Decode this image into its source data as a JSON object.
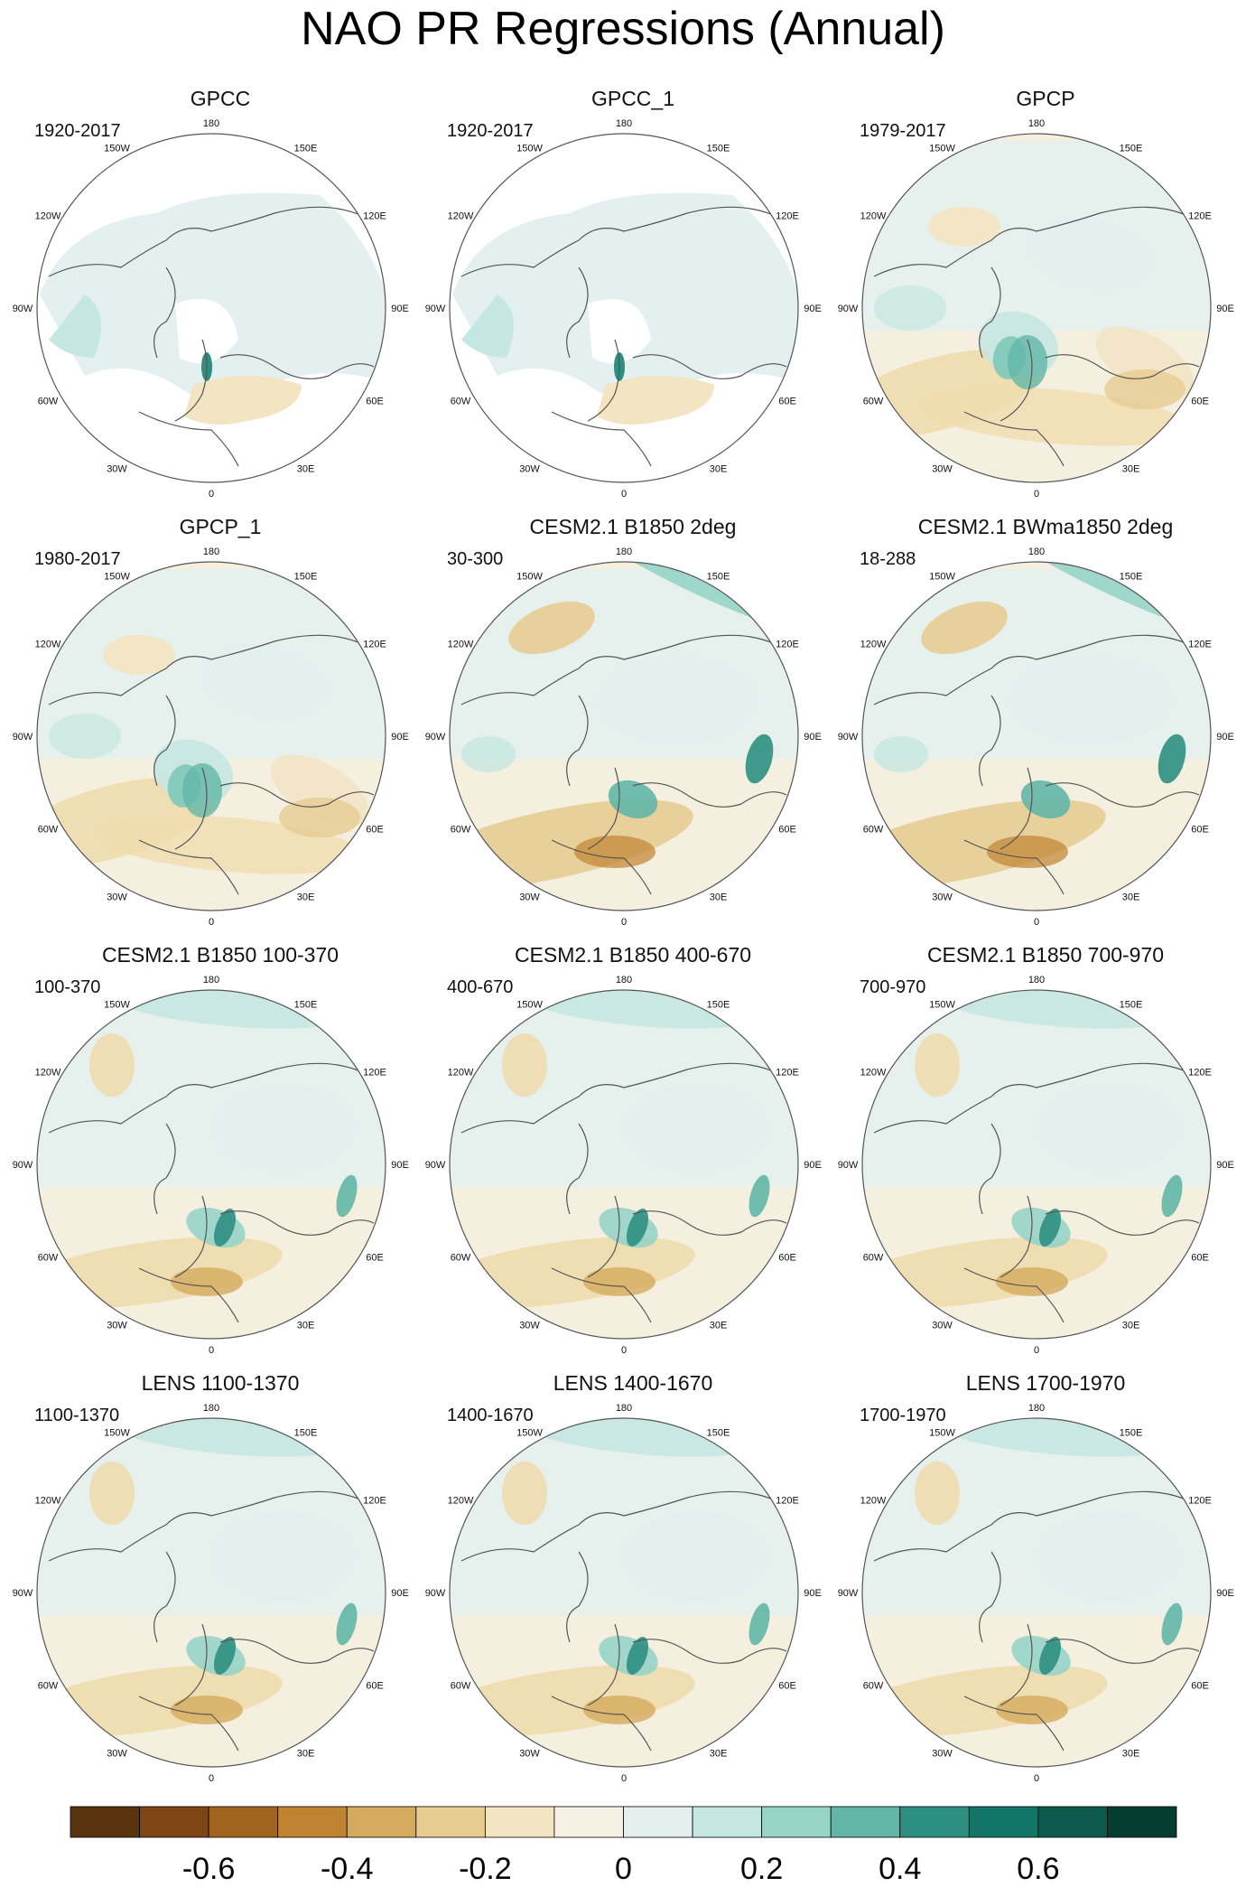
{
  "title": "NAO PR Regressions (Annual)",
  "panels": [
    {
      "title": "GPCC",
      "period": "1920-2017",
      "style": "gpcc"
    },
    {
      "title": "GPCC_1",
      "period": "1920-2017",
      "style": "gpcc"
    },
    {
      "title": "GPCP",
      "period": "1979-2017",
      "style": "obs"
    },
    {
      "title": "GPCP_1",
      "period": "1980-2017",
      "style": "obs"
    },
    {
      "title": "CESM2.1 B1850 2deg",
      "period": "30-300",
      "style": "model_strong"
    },
    {
      "title": "CESM2.1 BWma1850 2deg",
      "period": "18-288",
      "style": "model_strong"
    },
    {
      "title": "CESM2.1 B1850 100-370",
      "period": "100-370",
      "style": "model"
    },
    {
      "title": "CESM2.1 B1850 400-670",
      "period": "400-670",
      "style": "model"
    },
    {
      "title": "CESM2.1 B1850 700-970",
      "period": "700-970",
      "style": "model_weak"
    },
    {
      "title": "LENS 1100-1370",
      "period": "1100-1370",
      "style": "model"
    },
    {
      "title": "LENS 1400-1670",
      "period": "1400-1670",
      "style": "model"
    },
    {
      "title": "LENS 1700-1970",
      "period": "1700-1970",
      "style": "model"
    }
  ],
  "lon_labels": {
    "top": "180",
    "bottom": "0",
    "left": [
      "150W",
      "120W",
      "90W",
      "60W",
      "30W"
    ],
    "right": [
      "150E",
      "120E",
      "90E",
      "60E",
      "30E"
    ]
  },
  "colorbar": {
    "colors": [
      "#5a330f",
      "#7d4614",
      "#a0641f",
      "#c08331",
      "#d4aa5c",
      "#e7cc92",
      "#f3e4c2",
      "#f6f0e3",
      "#e3f0ef",
      "#c5e7e1",
      "#97d4c8",
      "#62b6a7",
      "#2d8f82",
      "#137468",
      "#0c5a4c",
      "#063d32"
    ],
    "ticks": [
      "-0.6",
      "-0.4",
      "-0.2",
      "0",
      "0.2",
      "0.4",
      "0.6"
    ]
  }
}
